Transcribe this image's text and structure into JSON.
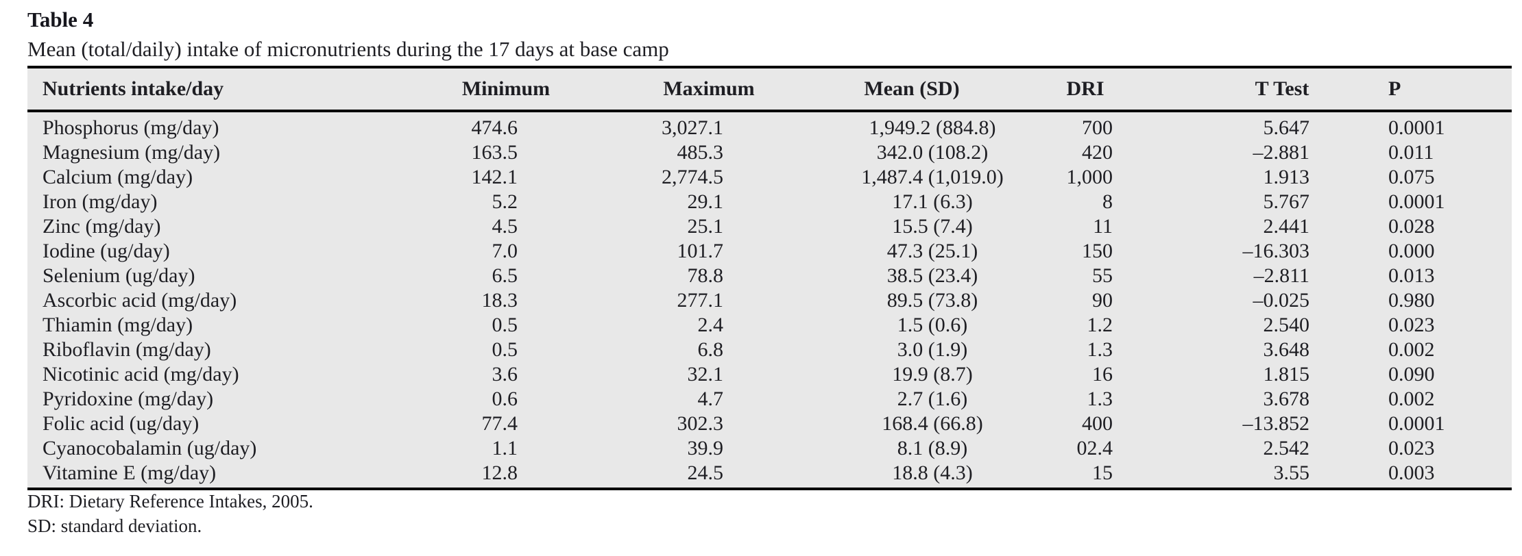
{
  "caption": {
    "label": "Table 4",
    "title": "Mean (total/daily) intake of micronutrients during the 17 days at base camp"
  },
  "table": {
    "headers": [
      "Nutrients intake/day",
      "Minimum",
      "Maximum",
      "Mean (SD)",
      "DRI",
      "T Test",
      "P"
    ],
    "rows": [
      {
        "nutrient": "Phosphorus (mg/day)",
        "minimum": "474.6",
        "maximum": "3,027.1",
        "mean_sd": "1,949.2 (884.8)",
        "dri": "700",
        "t_test": "5.647",
        "p": "0.0001"
      },
      {
        "nutrient": "Magnesium (mg/day)",
        "minimum": "163.5",
        "maximum": "485.3",
        "mean_sd": "342.0 (108.2)",
        "dri": "420",
        "t_test": "–2.881",
        "p": "0.011"
      },
      {
        "nutrient": "Calcium (mg/day)",
        "minimum": "142.1",
        "maximum": "2,774.5",
        "mean_sd": "1,487.4 (1,019.0)",
        "dri": "1,000",
        "t_test": "1.913",
        "p": "0.075"
      },
      {
        "nutrient": "Iron (mg/day)",
        "minimum": "5.2",
        "maximum": "29.1",
        "mean_sd": "17.1 (6.3)",
        "dri": "8",
        "t_test": "5.767",
        "p": "0.0001"
      },
      {
        "nutrient": "Zinc (mg/day)",
        "minimum": "4.5",
        "maximum": "25.1",
        "mean_sd": "15.5 (7.4)",
        "dri": "11",
        "t_test": "2.441",
        "p": "0.028"
      },
      {
        "nutrient": "Iodine (ug/day)",
        "minimum": "7.0",
        "maximum": "101.7",
        "mean_sd": "47.3 (25.1)",
        "dri": "150",
        "t_test": "–16.303",
        "p": "0.000"
      },
      {
        "nutrient": "Selenium (ug/day)",
        "minimum": "6.5",
        "maximum": "78.8",
        "mean_sd": "38.5 (23.4)",
        "dri": "55",
        "t_test": "–2.811",
        "p": "0.013"
      },
      {
        "nutrient": "Ascorbic acid (mg/day)",
        "minimum": "18.3",
        "maximum": "277.1",
        "mean_sd": "89.5 (73.8)",
        "dri": "90",
        "t_test": "–0.025",
        "p": "0.980"
      },
      {
        "nutrient": "Thiamin (mg/day)",
        "minimum": "0.5",
        "maximum": "2.4",
        "mean_sd": "1.5 (0.6)",
        "dri": "1.2",
        "t_test": "2.540",
        "p": "0.023"
      },
      {
        "nutrient": "Riboflavin (mg/day)",
        "minimum": "0.5",
        "maximum": "6.8",
        "mean_sd": "3.0 (1.9)",
        "dri": "1.3",
        "t_test": "3.648",
        "p": "0.002"
      },
      {
        "nutrient": "Nicotinic acid (mg/day)",
        "minimum": "3.6",
        "maximum": "32.1",
        "mean_sd": "19.9 (8.7)",
        "dri": "16",
        "t_test": "1.815",
        "p": "0.090"
      },
      {
        "nutrient": "Pyridoxine (mg/day)",
        "minimum": "0.6",
        "maximum": "4.7",
        "mean_sd": "2.7 (1.6)",
        "dri": "1.3",
        "t_test": "3.678",
        "p": "0.002"
      },
      {
        "nutrient": "Folic acid (ug/day)",
        "minimum": "77.4",
        "maximum": "302.3",
        "mean_sd": "168.4 (66.8)",
        "dri": "400",
        "t_test": "–13.852",
        "p": "0.0001"
      },
      {
        "nutrient": "Cyanocobalamin (ug/day)",
        "minimum": "1.1",
        "maximum": "39.9",
        "mean_sd": "8.1 (8.9)",
        "dri": "02.4",
        "t_test": "2.542",
        "p": "0.023"
      },
      {
        "nutrient": "Vitamine E (mg/day)",
        "minimum": "12.8",
        "maximum": "24.5",
        "mean_sd": "18.8 (4.3)",
        "dri": "15",
        "t_test": "3.55",
        "p": "0.003"
      }
    ]
  },
  "footnotes": [
    "DRI: Dietary Reference Intakes, 2005.",
    "SD: standard deviation."
  ],
  "colors": {
    "table_background": "#e8e8e8",
    "rule": "#000000",
    "text": "#1e1e23"
  }
}
